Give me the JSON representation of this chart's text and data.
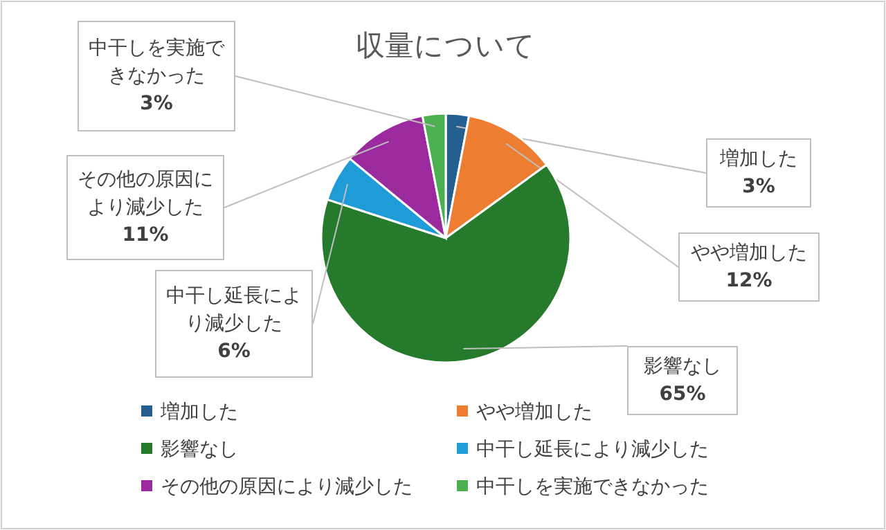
{
  "chart_data": {
    "type": "pie",
    "title": "収量について",
    "categories": [
      "増加した",
      "やや増加した",
      "影響なし",
      "中干し延長により減少した",
      "その他の原因により減少した",
      "中干しを実施できなかった"
    ],
    "values": [
      3,
      12,
      65,
      6,
      11,
      3
    ],
    "value_labels": [
      "3%",
      "12%",
      "65%",
      "6%",
      "11%",
      "3%"
    ],
    "colors": [
      "#255e91",
      "#ed7d31",
      "#267a2b",
      "#1f9bd8",
      "#9b2a9f",
      "#4caf50"
    ],
    "legend": "bottom"
  }
}
